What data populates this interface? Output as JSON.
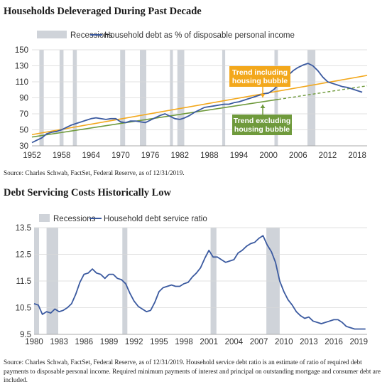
{
  "titles": {
    "chart1": "Households Deleveraged During Past Decade",
    "chart2": "Debt Servicing Costs Historically Low"
  },
  "sources": {
    "chart1": "Source: Charles Schwab, FactSet, Federal Reserve, as of 12/31/2019.",
    "chart2": "Source: Charles Schwab, FactSet, Federal Reserve, as of 12/31/2019. Household service debt ratio is an estimate of ratio of required debt payments to disposable personal income. Required minimum payments of interest and principal on outstanding mortgage and consumer debt are included."
  },
  "colors": {
    "series": "#3b5aa0",
    "recession": "#cfd3d9",
    "trend_incl": "#f3a81c",
    "trend_excl": "#6f9a3c",
    "grid": "#d9d9d9",
    "text": "#333333"
  },
  "chart_data": [
    {
      "type": "line",
      "title": "Households Deleveraged During Past Decade",
      "legend": [
        "Recessions",
        "Household debt as % of disposable personal income"
      ],
      "legend_position": "top-left",
      "grid": true,
      "xlim": [
        1952,
        2020
      ],
      "ylim": [
        30,
        150
      ],
      "x_ticks": [
        1952,
        1958,
        1964,
        1970,
        1976,
        1982,
        1988,
        1994,
        2000,
        2006,
        2012,
        2018
      ],
      "y_ticks": [
        30,
        50,
        70,
        90,
        110,
        130,
        150
      ],
      "recessions": [
        [
          1953.5,
          1954.4
        ],
        [
          1957.6,
          1958.4
        ],
        [
          1960.3,
          1961.1
        ],
        [
          1969.9,
          1970.9
        ],
        [
          1973.9,
          1975.2
        ],
        [
          1980.0,
          1980.6
        ],
        [
          1981.5,
          1982.9
        ],
        [
          1990.6,
          1991.2
        ],
        [
          2001.2,
          2001.9
        ],
        [
          2007.9,
          2009.5
        ]
      ],
      "series": [
        {
          "name": "Household debt as % of disposable personal income",
          "x": [
            1952,
            1953,
            1954,
            1955,
            1956,
            1957,
            1958,
            1959,
            1960,
            1961,
            1962,
            1963,
            1964,
            1965,
            1966,
            1967,
            1968,
            1969,
            1970,
            1971,
            1972,
            1973,
            1974,
            1975,
            1976,
            1977,
            1978,
            1979,
            1980,
            1981,
            1982,
            1983,
            1984,
            1985,
            1986,
            1987,
            1988,
            1989,
            1990,
            1991,
            1992,
            1993,
            1994,
            1995,
            1996,
            1997,
            1998,
            1999,
            2000,
            2001,
            2002,
            2003,
            2004,
            2005,
            2006,
            2007,
            2008,
            2009,
            2010,
            2011,
            2012,
            2013,
            2014,
            2015,
            2016,
            2017,
            2018,
            2019
          ],
          "y": [
            34,
            37,
            40,
            45,
            47,
            48,
            50,
            53,
            56,
            58,
            60,
            62,
            64,
            65,
            64,
            63,
            64,
            64,
            60,
            59,
            61,
            61,
            60,
            59,
            62,
            65,
            68,
            70,
            67,
            64,
            63,
            65,
            68,
            72,
            75,
            78,
            79,
            80,
            81,
            82,
            82,
            84,
            85,
            87,
            89,
            91,
            93,
            95,
            96,
            100,
            106,
            112,
            118,
            124,
            128,
            131,
            133,
            130,
            124,
            116,
            110,
            108,
            106,
            104,
            103,
            101,
            99,
            97
          ]
        }
      ],
      "trend_lines": [
        {
          "name": "Trend including housing bubble",
          "x": [
            1952,
            2020
          ],
          "y": [
            44,
            118
          ],
          "style": "solid",
          "label": "Trend including\nhousing bubble"
        },
        {
          "name": "Trend excluding housing bubble",
          "x": [
            1952,
            2020
          ],
          "y": [
            41,
            105
          ],
          "style": "solid-then-dashed",
          "dash_from_x": 2002,
          "label": "Trend excluding\nhousing bubble"
        }
      ]
    },
    {
      "type": "line",
      "title": "Debt Servicing Costs Historically Low",
      "legend": [
        "Recessions",
        "Household debt service ratio"
      ],
      "legend_position": "top-left",
      "grid": true,
      "xlim": [
        1980,
        2020
      ],
      "ylim": [
        9.5,
        13.5
      ],
      "x_ticks": [
        1980,
        1983,
        1986,
        1989,
        1992,
        1995,
        1998,
        2001,
        2004,
        2007,
        2010,
        2013,
        2016,
        2019
      ],
      "y_ticks": [
        9.5,
        10.5,
        11.5,
        12.5,
        13.5
      ],
      "recessions": [
        [
          1980.0,
          1980.6
        ],
        [
          1981.5,
          1982.9
        ],
        [
          1990.6,
          1991.2
        ],
        [
          2001.2,
          2001.9
        ],
        [
          2007.9,
          2009.5
        ]
      ],
      "series": [
        {
          "name": "Household debt service ratio",
          "x": [
            1980,
            1980.5,
            1981,
            1981.5,
            1982,
            1982.5,
            1983,
            1983.5,
            1984,
            1984.5,
            1985,
            1985.5,
            1986,
            1986.5,
            1987,
            1987.5,
            1988,
            1988.5,
            1989,
            1989.5,
            1990,
            1990.5,
            1991,
            1991.5,
            1992,
            1992.5,
            1993,
            1993.5,
            1994,
            1994.5,
            1995,
            1995.5,
            1996,
            1996.5,
            1997,
            1997.5,
            1998,
            1998.5,
            1999,
            1999.5,
            2000,
            2000.5,
            2001,
            2001.5,
            2002,
            2002.5,
            2003,
            2003.5,
            2004,
            2004.5,
            2005,
            2005.5,
            2006,
            2006.5,
            2007,
            2007.5,
            2008,
            2008.5,
            2009,
            2009.5,
            2010,
            2010.5,
            2011,
            2011.5,
            2012,
            2012.5,
            2013,
            2013.5,
            2014,
            2014.5,
            2015,
            2015.5,
            2016,
            2016.5,
            2017,
            2017.5,
            2018,
            2018.5,
            2019,
            2019.8
          ],
          "y": [
            10.65,
            10.6,
            10.25,
            10.35,
            10.3,
            10.45,
            10.35,
            10.4,
            10.5,
            10.65,
            11.0,
            11.45,
            11.75,
            11.8,
            11.95,
            11.8,
            11.75,
            11.6,
            11.75,
            11.75,
            11.6,
            11.55,
            11.4,
            11.05,
            10.75,
            10.55,
            10.45,
            10.35,
            10.4,
            10.7,
            11.1,
            11.25,
            11.3,
            11.35,
            11.3,
            11.3,
            11.4,
            11.45,
            11.65,
            11.8,
            12.0,
            12.35,
            12.65,
            12.4,
            12.4,
            12.3,
            12.2,
            12.25,
            12.3,
            12.55,
            12.65,
            12.8,
            12.9,
            12.95,
            13.1,
            13.2,
            12.85,
            12.6,
            12.2,
            11.5,
            11.1,
            10.8,
            10.6,
            10.35,
            10.2,
            10.1,
            10.15,
            10.0,
            9.95,
            9.9,
            9.95,
            10.0,
            10.05,
            10.05,
            9.95,
            9.8,
            9.75,
            9.7,
            9.7,
            9.7
          ]
        }
      ]
    }
  ]
}
